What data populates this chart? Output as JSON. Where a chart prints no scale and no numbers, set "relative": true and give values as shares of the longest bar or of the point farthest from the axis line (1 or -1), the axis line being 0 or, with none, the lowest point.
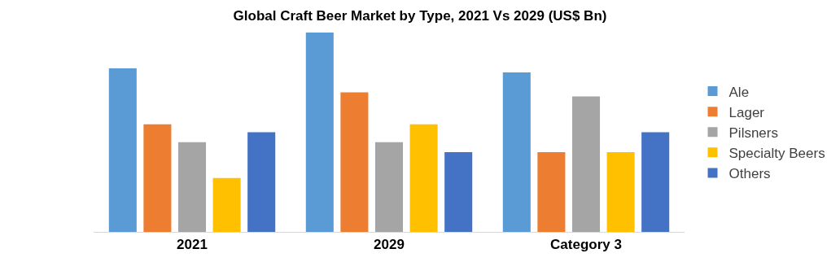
{
  "chart_data": {
    "type": "bar",
    "title": "Global Craft Beer Market by Type, 2021 Vs 2029 (US$ Bn)",
    "categories": [
      "2021",
      "2029",
      "Category 3"
    ],
    "relative": true,
    "legend": "right",
    "series": [
      {
        "name": "Ale",
        "color": "#5b9bd5",
        "values": [
          0.82,
          1,
          0.8
        ]
      },
      {
        "name": "Lager",
        "color": "#ed7d31",
        "values": [
          0.54,
          0.7,
          0.4
        ]
      },
      {
        "name": "Pilsners",
        "color": "#a5a5a5",
        "values": [
          0.45,
          0.45,
          0.68
        ]
      },
      {
        "name": "Specialty Beers",
        "color": "#ffc000",
        "values": [
          0.27,
          0.54,
          0.4
        ]
      },
      {
        "name": "Others",
        "color": "#4472c4",
        "values": [
          0.5,
          0.4,
          0.5
        ]
      }
    ]
  }
}
